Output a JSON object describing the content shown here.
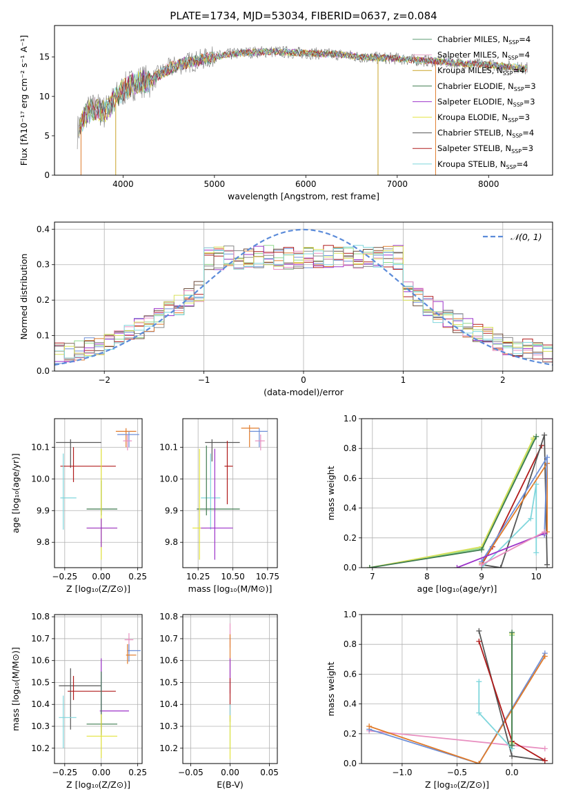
{
  "figure": {
    "title": "PLATE=1734, MJD=53034, FIBERID=0637, z=0.084"
  },
  "chart_data": [
    {
      "type": "line",
      "id": "spectrum",
      "xlabel": "wavelength [Angstrom, rest frame]",
      "ylabel": "Flux [fλ10⁻¹⁷ erg cm⁻² s⁻¹ A⁻¹]",
      "xlim": [
        3250,
        8700
      ],
      "ylim": [
        0,
        19
      ],
      "xticks": [
        4000,
        5000,
        6000,
        7000,
        8000
      ],
      "yticks": [
        0,
        5,
        10,
        15
      ],
      "grid": false,
      "legend_position": "top-right",
      "x": [
        3500,
        3600,
        3700,
        3800,
        3900,
        4000,
        4100,
        4200,
        4300,
        4400,
        4500,
        4600,
        4700,
        4800,
        4900,
        5000,
        5200,
        5400,
        5600,
        5800,
        6000,
        6200,
        6400,
        6600,
        6800,
        7000,
        7200,
        7400,
        7600,
        7800,
        8000,
        8200,
        8400
      ],
      "y": [
        5.5,
        8.0,
        8.5,
        8.0,
        9.5,
        10.8,
        11.5,
        12.0,
        11.8,
        12.8,
        13.5,
        14.0,
        14.3,
        14.5,
        14.8,
        15.0,
        15.4,
        15.6,
        15.7,
        15.6,
        15.5,
        15.4,
        15.3,
        15.0,
        14.9,
        14.8,
        14.6,
        14.5,
        14.3,
        14.1,
        14.0,
        13.8,
        13.6
      ],
      "series": [
        {
          "name": "Chabrier MILES, N",
          "sub": "SSP",
          "suffix": "=4",
          "color": "#5a9a72"
        },
        {
          "name": "Salpeter MILES, N",
          "sub": "SSP",
          "suffix": "=4",
          "color": "#e6a8c8"
        },
        {
          "name": "Kroupa MILES, N",
          "sub": "SSP",
          "suffix": "=4",
          "color": "#c9a227"
        },
        {
          "name": "Chabrier ELODIE, N",
          "sub": "SSP",
          "suffix": "=3",
          "color": "#3d7a4e"
        },
        {
          "name": "Salpeter ELODIE, N",
          "sub": "SSP",
          "suffix": "=3",
          "color": "#9b30c9"
        },
        {
          "name": "Kroupa ELODIE, N",
          "sub": "SSP",
          "suffix": "=3",
          "color": "#e3e33a"
        },
        {
          "name": "Chabrier STELIB, N",
          "sub": "SSP",
          "suffix": "=4",
          "color": "#555555"
        },
        {
          "name": "Salpeter STELIB, N",
          "sub": "SSP",
          "suffix": "=3",
          "color": "#b01a1a"
        },
        {
          "name": "Kroupa STELIB, N",
          "sub": "SSP",
          "suffix": "=4",
          "color": "#7fd6dc"
        }
      ]
    },
    {
      "type": "bar",
      "id": "residuals",
      "xlabel": "(data-model)/error",
      "ylabel": "Normed distribution",
      "xlim": [
        -2.5,
        2.5
      ],
      "ylim": [
        0,
        0.42
      ],
      "xticks": [
        -2,
        -1,
        0,
        1,
        2
      ],
      "yticks": [
        0.0,
        0.1,
        0.2,
        0.3,
        0.4
      ],
      "grid": true,
      "legend_position": "top-right",
      "legend_label": "𝒩(0, 1)",
      "bin_width": 0.1,
      "series_colors": [
        "#6d8fd8",
        "#e07b2a",
        "#8fd88a",
        "#b01a1a",
        "#9b30c9",
        "#6b4a3a",
        "#e88fc0",
        "#888888",
        "#d7e05a",
        "#7fd6dc"
      ],
      "normal_color": "#5b8bd9"
    },
    {
      "type": "scatter",
      "id": "age-vs-z",
      "xlabel": "Z [log₁₀(Z/Z⊙)]",
      "ylabel": "age  [log₁₀(age/yr)]",
      "xlim": [
        -0.32,
        0.28
      ],
      "ylim": [
        9.72,
        10.19
      ],
      "xticks": [
        -0.25,
        0.0,
        0.25
      ],
      "yticks": [
        9.8,
        9.9,
        10.0,
        10.1
      ],
      "grid": true,
      "points": [
        {
          "x": 0.17,
          "y": 10.15,
          "xerr": [
            0.07,
            0.07
          ],
          "yerr": [
            0.05,
            0.01
          ],
          "color": "#e07b2a"
        },
        {
          "x": 0.19,
          "y": 10.14,
          "xerr": [
            0.08,
            0.07
          ],
          "yerr": [
            0.04,
            0.01
          ],
          "color": "#6d8fd8"
        },
        {
          "x": 0.18,
          "y": 10.12,
          "xerr": [
            0.03,
            0.03
          ],
          "yerr": [
            0.03,
            0.02
          ],
          "color": "#e88fc0"
        },
        {
          "x": -0.21,
          "y": 10.115,
          "xerr": [
            0.1,
            0.21
          ],
          "yerr": [
            0.08,
            0.01
          ],
          "color": "#555555"
        },
        {
          "x": -0.19,
          "y": 10.04,
          "xerr": [
            0.09,
            0.29
          ],
          "yerr": [
            0.05,
            0.06
          ],
          "color": "#b01a1a"
        },
        {
          "x": -0.26,
          "y": 9.94,
          "xerr": [
            0.02,
            0.09
          ],
          "yerr": [
            0.1,
            0.14
          ],
          "color": "#7fd6dc"
        },
        {
          "x": 0.0,
          "y": 9.905,
          "xerr": [
            0.1,
            0.11
          ],
          "yerr": [
            0.02,
            0.09
          ],
          "color": "#3d7a4e"
        },
        {
          "x": 0.0,
          "y": 9.845,
          "xerr": [
            0.1,
            0.11
          ],
          "yerr": [
            0.1,
            0.25
          ],
          "color": "#e3e33a"
        },
        {
          "x": 0.0,
          "y": 9.845,
          "xerr": [
            0.1,
            0.11
          ],
          "yerr": [
            0.06,
            0.03
          ],
          "color": "#9b30c9"
        }
      ]
    },
    {
      "type": "scatter",
      "id": "age-vs-mass",
      "xlabel": "mass [log₁₀(M/M⊙)]",
      "ylabel": "",
      "xlim": [
        10.14,
        10.82
      ],
      "ylim": [
        9.72,
        10.19
      ],
      "xticks": [
        10.25,
        10.5,
        10.75
      ],
      "yticks": [
        9.8,
        9.9,
        10.0,
        10.1
      ],
      "grid": true,
      "points": [
        {
          "x": 10.62,
          "y": 10.16,
          "xerr": [
            0.06,
            0.07
          ],
          "yerr": [
            0.06,
            0.01
          ],
          "color": "#e07b2a"
        },
        {
          "x": 10.69,
          "y": 10.15,
          "xerr": [
            0.07,
            0.06
          ],
          "yerr": [
            0.05,
            0.01
          ],
          "color": "#6d8fd8"
        },
        {
          "x": 10.7,
          "y": 10.12,
          "xerr": [
            0.04,
            0.03
          ],
          "yerr": [
            0.03,
            0.02
          ],
          "color": "#e88fc0"
        },
        {
          "x": 10.35,
          "y": 10.115,
          "xerr": [
            0.05,
            0.2
          ],
          "yerr": [
            0.06,
            0.01
          ],
          "color": "#555555"
        },
        {
          "x": 10.46,
          "y": 10.04,
          "xerr": [
            0.02,
            0.04
          ],
          "yerr": [
            0.12,
            0.08
          ],
          "color": "#b01a1a"
        },
        {
          "x": 10.34,
          "y": 9.94,
          "xerr": [
            0.07,
            0.07
          ],
          "yerr": [
            0.1,
            0.14
          ],
          "color": "#7fd6dc"
        },
        {
          "x": 10.31,
          "y": 9.905,
          "xerr": [
            0.07,
            0.24
          ],
          "yerr": [
            0.02,
            0.2
          ],
          "color": "#3d7a4e"
        },
        {
          "x": 10.26,
          "y": 9.845,
          "xerr": [
            0.05,
            0.05
          ],
          "yerr": [
            0.1,
            0.25
          ],
          "color": "#e3e33a"
        },
        {
          "x": 10.37,
          "y": 9.845,
          "xerr": [
            0.1,
            0.13
          ],
          "yerr": [
            0.1,
            0.25
          ],
          "color": "#9b30c9"
        }
      ]
    },
    {
      "type": "line",
      "id": "weight-vs-age",
      "xlabel": "age  [log₁₀(age/yr)]",
      "ylabel": "mass weight",
      "xlim": [
        6.8,
        10.3
      ],
      "ylim": [
        0,
        1
      ],
      "xticks": [
        7,
        8,
        9,
        10
      ],
      "yticks": [
        0.0,
        0.2,
        0.4,
        0.6,
        0.8,
        1.0
      ],
      "grid": true,
      "series": [
        {
          "color": "#8fd88a",
          "points": [
            [
              6.95,
              0.0
            ],
            [
              9.0,
              0.13
            ],
            [
              9.95,
              0.86
            ]
          ]
        },
        {
          "color": "#d7e05a",
          "points": [
            [
              6.95,
              0.0
            ],
            [
              9.0,
              0.14
            ],
            [
              9.95,
              0.87
            ]
          ]
        },
        {
          "color": "#3d7a4e",
          "points": [
            [
              6.95,
              0.0
            ],
            [
              9.0,
              0.12
            ],
            [
              10.0,
              0.88
            ]
          ]
        },
        {
          "color": "#b01a1a",
          "points": [
            [
              9.0,
              0.02
            ],
            [
              9.2,
              0.14
            ],
            [
              10.1,
              0.82
            ]
          ]
        },
        {
          "color": "#555555",
          "points": [
            [
              9.0,
              0.02
            ],
            [
              9.35,
              0.0
            ],
            [
              10.15,
              0.89
            ],
            [
              10.2,
              0.02
            ]
          ]
        },
        {
          "color": "#e07b2a",
          "points": [
            [
              9.0,
              0.03
            ],
            [
              10.2,
              0.7
            ],
            [
              10.2,
              0.24
            ]
          ]
        },
        {
          "color": "#6d8fd8",
          "points": [
            [
              9.0,
              0.04
            ],
            [
              10.2,
              0.74
            ],
            [
              10.15,
              0.22
            ]
          ]
        },
        {
          "color": "#7fd6dc",
          "points": [
            [
              9.0,
              0.0
            ],
            [
              9.9,
              0.33
            ],
            [
              10.0,
              0.56
            ],
            [
              10.0,
              0.1
            ]
          ]
        },
        {
          "color": "#9b30c9",
          "points": [
            [
              8.55,
              0.0
            ],
            [
              10.15,
              0.23
            ]
          ]
        },
        {
          "color": "#e88fc0",
          "points": [
            [
              9.0,
              0.02
            ],
            [
              10.15,
              0.24
            ]
          ]
        }
      ]
    },
    {
      "type": "scatter",
      "id": "mass-vs-z",
      "xlabel": "Z [log₁₀(Z/Z⊙)]",
      "ylabel": "mass [log₁₀(M/M⊙)]",
      "xlim": [
        -0.32,
        0.28
      ],
      "ylim": [
        10.13,
        10.81
      ],
      "xticks": [
        -0.25,
        0.0,
        0.25
      ],
      "yticks": [
        10.2,
        10.3,
        10.4,
        10.5,
        10.6,
        10.7,
        10.8
      ],
      "grid": true,
      "points": [
        {
          "x": 0.19,
          "y": 10.695,
          "xerr": [
            0.03,
            0.03
          ],
          "yerr": [
            0.06,
            0.03
          ],
          "color": "#e88fc0"
        },
        {
          "x": 0.19,
          "y": 10.645,
          "xerr": [
            0.01,
            0.08
          ],
          "yerr": [
            0.05,
            0.03
          ],
          "color": "#6d8fd8"
        },
        {
          "x": 0.18,
          "y": 10.625,
          "xerr": [
            0.01,
            0.06
          ],
          "yerr": [
            0.04,
            0.05
          ],
          "color": "#e07b2a"
        },
        {
          "x": -0.21,
          "y": 10.485,
          "xerr": [
            0.08,
            0.21
          ],
          "yerr": [
            0.2,
            0.08
          ],
          "color": "#555555"
        },
        {
          "x": -0.19,
          "y": 10.46,
          "xerr": [
            0.04,
            0.29
          ],
          "yerr": [
            0.04,
            0.07
          ],
          "color": "#b01a1a"
        },
        {
          "x": -0.26,
          "y": 10.34,
          "xerr": [
            0.03,
            0.09
          ],
          "yerr": [
            0.14,
            0.1
          ],
          "color": "#7fd6dc"
        },
        {
          "x": 0.0,
          "y": 10.37,
          "xerr": [
            0.01,
            0.19
          ],
          "yerr": [
            0.1,
            0.24
          ],
          "color": "#9b30c9"
        },
        {
          "x": 0.0,
          "y": 10.31,
          "xerr": [
            0.1,
            0.11
          ],
          "yerr": [
            0.05,
            0.24
          ],
          "color": "#3d7a4e"
        },
        {
          "x": 0.0,
          "y": 10.255,
          "xerr": [
            0.1,
            0.11
          ],
          "yerr": [
            0.1,
            0.1
          ],
          "color": "#e3e33a"
        }
      ]
    },
    {
      "type": "scatter",
      "id": "mass-vs-ebv",
      "xlabel": "E(B-V)",
      "ylabel": "",
      "xlim": [
        -0.06,
        0.06
      ],
      "ylim": [
        10.13,
        10.81
      ],
      "xticks": [
        -0.05,
        0.0,
        0.05
      ],
      "yticks": [
        10.2,
        10.3,
        10.4,
        10.5,
        10.6,
        10.7,
        10.8
      ],
      "grid": true,
      "points": [
        {
          "x": 0.0,
          "y": 10.7,
          "xerr": [
            0,
            0
          ],
          "yerr": [
            0.04,
            0.07
          ],
          "color": "#e88fc0"
        },
        {
          "x": 0.0,
          "y": 10.62,
          "xerr": [
            0,
            0
          ],
          "yerr": [
            0.1,
            0.1
          ],
          "color": "#e07b2a"
        },
        {
          "x": 0.0,
          "y": 10.55,
          "xerr": [
            0,
            0
          ],
          "yerr": [
            0.1,
            0.06
          ],
          "color": "#9b30c9"
        },
        {
          "x": 0.0,
          "y": 10.42,
          "xerr": [
            0,
            0
          ],
          "yerr": [
            0.1,
            0.1
          ],
          "color": "#b01a1a"
        },
        {
          "x": 0.0,
          "y": 10.3,
          "xerr": [
            0,
            0
          ],
          "yerr": [
            0.1,
            0.1
          ],
          "color": "#7fd6dc"
        },
        {
          "x": 0.0,
          "y": 10.25,
          "xerr": [
            0,
            0
          ],
          "yerr": [
            0.1,
            0.1
          ],
          "color": "#e3e33a"
        }
      ]
    },
    {
      "type": "line",
      "id": "weight-vs-z",
      "xlabel": "Z [log₁₀(Z/Z⊙)]",
      "ylabel": "mass weight",
      "xlim": [
        -1.37,
        0.37
      ],
      "ylim": [
        0,
        1
      ],
      "xticks": [
        -1.0,
        -0.5,
        0.0
      ],
      "yticks": [
        0.0,
        0.2,
        0.4,
        0.6,
        0.8,
        1.0
      ],
      "grid": true,
      "series": [
        {
          "color": "#e88fc0",
          "points": [
            [
              -1.3,
              0.22
            ],
            [
              0.3,
              0.1
            ]
          ]
        },
        {
          "color": "#6d8fd8",
          "points": [
            [
              -1.3,
              0.23
            ],
            [
              -0.3,
              0.0
            ],
            [
              0.3,
              0.74
            ]
          ]
        },
        {
          "color": "#e07b2a",
          "points": [
            [
              -1.3,
              0.25
            ],
            [
              -0.3,
              0.0
            ],
            [
              0.3,
              0.72
            ]
          ]
        },
        {
          "color": "#555555",
          "points": [
            [
              -0.3,
              0.89
            ],
            [
              0.0,
              0.05
            ],
            [
              0.3,
              0.02
            ]
          ]
        },
        {
          "color": "#b01a1a",
          "points": [
            [
              -0.3,
              0.82
            ],
            [
              0.0,
              0.15
            ],
            [
              0.3,
              0.02
            ]
          ]
        },
        {
          "color": "#7fd6dc",
          "points": [
            [
              -0.3,
              0.55
            ],
            [
              -0.3,
              0.34
            ],
            [
              0.0,
              0.1
            ]
          ]
        },
        {
          "color": "#8fd88a",
          "points": [
            [
              0.0,
              0.86
            ],
            [
              0.0,
              0.13
            ]
          ]
        },
        {
          "color": "#d7e05a",
          "points": [
            [
              0.0,
              0.87
            ],
            [
              0.0,
              0.14
            ]
          ]
        },
        {
          "color": "#3d7a4e",
          "points": [
            [
              0.0,
              0.88
            ],
            [
              0.0,
              0.12
            ]
          ]
        }
      ]
    }
  ]
}
